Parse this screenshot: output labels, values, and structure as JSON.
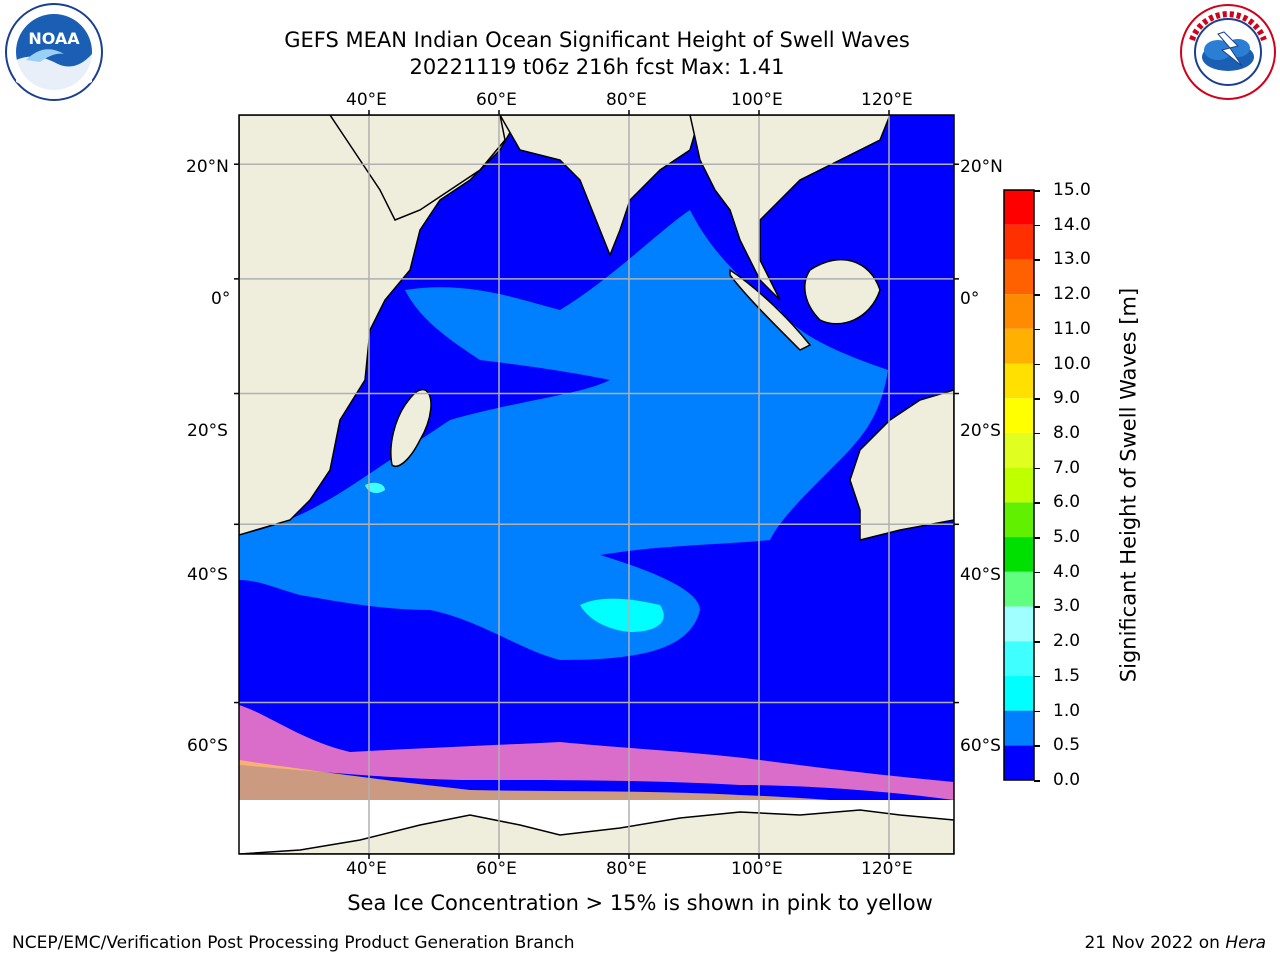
{
  "header": {
    "title_line1": "GEFS MEAN Indian Ocean Significant Height of Swell Waves",
    "title_line2": "20221119 t06z 216h fcst   Max: 1.41"
  },
  "logos": {
    "noaa_text": "NOAA",
    "noaa_ring_text": "NATIONAL OCEANIC AND ATMOSPHERIC ADMINISTRATION · U.S. DEPARTMENT OF COMMERCE",
    "nws_ring_text": "NATIONAL WEATHER SERVICE"
  },
  "map": {
    "lon_labels": [
      "40°E",
      "60°E",
      "80°E",
      "100°E",
      "120°E"
    ],
    "lat_labels": [
      "20°N",
      "0°",
      "20°S",
      "40°S",
      "60°S"
    ],
    "lon_values": [
      40,
      60,
      80,
      100,
      120
    ],
    "lat_values": [
      20,
      0,
      -20,
      -40,
      -60
    ],
    "extent": {
      "lon_min": 20,
      "lon_max": 130,
      "lat_min": -71,
      "lat_max": 28
    },
    "colors": {
      "land": "#efeddc",
      "sea_low": "#0000ff",
      "sea_mid": "#0080ff",
      "sea_high": "#00ffff",
      "grid": "#b0b0b0"
    }
  },
  "colorbar": {
    "label": "Significant Height of Swell Waves [m]",
    "ticks": [
      "15.0",
      "14.0",
      "13.0",
      "12.0",
      "11.0",
      "10.0",
      "9.0",
      "8.0",
      "7.0",
      "6.0",
      "5.0",
      "4.0",
      "3.0",
      "2.0",
      "1.5",
      "1.0",
      "0.5",
      "0.0"
    ],
    "bands": [
      {
        "from": 0.0,
        "to": 0.5,
        "color": "#0000ff"
      },
      {
        "from": 0.5,
        "to": 1.0,
        "color": "#0080ff"
      },
      {
        "from": 1.0,
        "to": 1.5,
        "color": "#00ffff"
      },
      {
        "from": 1.5,
        "to": 2.0,
        "color": "#40ffff"
      },
      {
        "from": 2.0,
        "to": 3.0,
        "color": "#a0ffff"
      },
      {
        "from": 3.0,
        "to": 4.0,
        "color": "#60ff80"
      },
      {
        "from": 4.0,
        "to": 5.0,
        "color": "#00e000"
      },
      {
        "from": 5.0,
        "to": 6.0,
        "color": "#60f000"
      },
      {
        "from": 6.0,
        "to": 7.0,
        "color": "#c0ff00"
      },
      {
        "from": 7.0,
        "to": 8.0,
        "color": "#e0ff20"
      },
      {
        "from": 8.0,
        "to": 9.0,
        "color": "#ffff00"
      },
      {
        "from": 9.0,
        "to": 10.0,
        "color": "#ffe000"
      },
      {
        "from": 10.0,
        "to": 11.0,
        "color": "#ffb000"
      },
      {
        "from": 11.0,
        "to": 12.0,
        "color": "#ff8c00"
      },
      {
        "from": 12.0,
        "to": 13.0,
        "color": "#ff6000"
      },
      {
        "from": 13.0,
        "to": 14.0,
        "color": "#ff3000"
      },
      {
        "from": 14.0,
        "to": 15.0,
        "color": "#ff0000"
      }
    ]
  },
  "note": "Sea Ice Concentration > 15% is shown in pink to yellow",
  "footer": {
    "left": "NCEP/EMC/Verification Post Processing Product Generation Branch",
    "right_date": "21 Nov 2022 on",
    "right_host": "Hera"
  }
}
